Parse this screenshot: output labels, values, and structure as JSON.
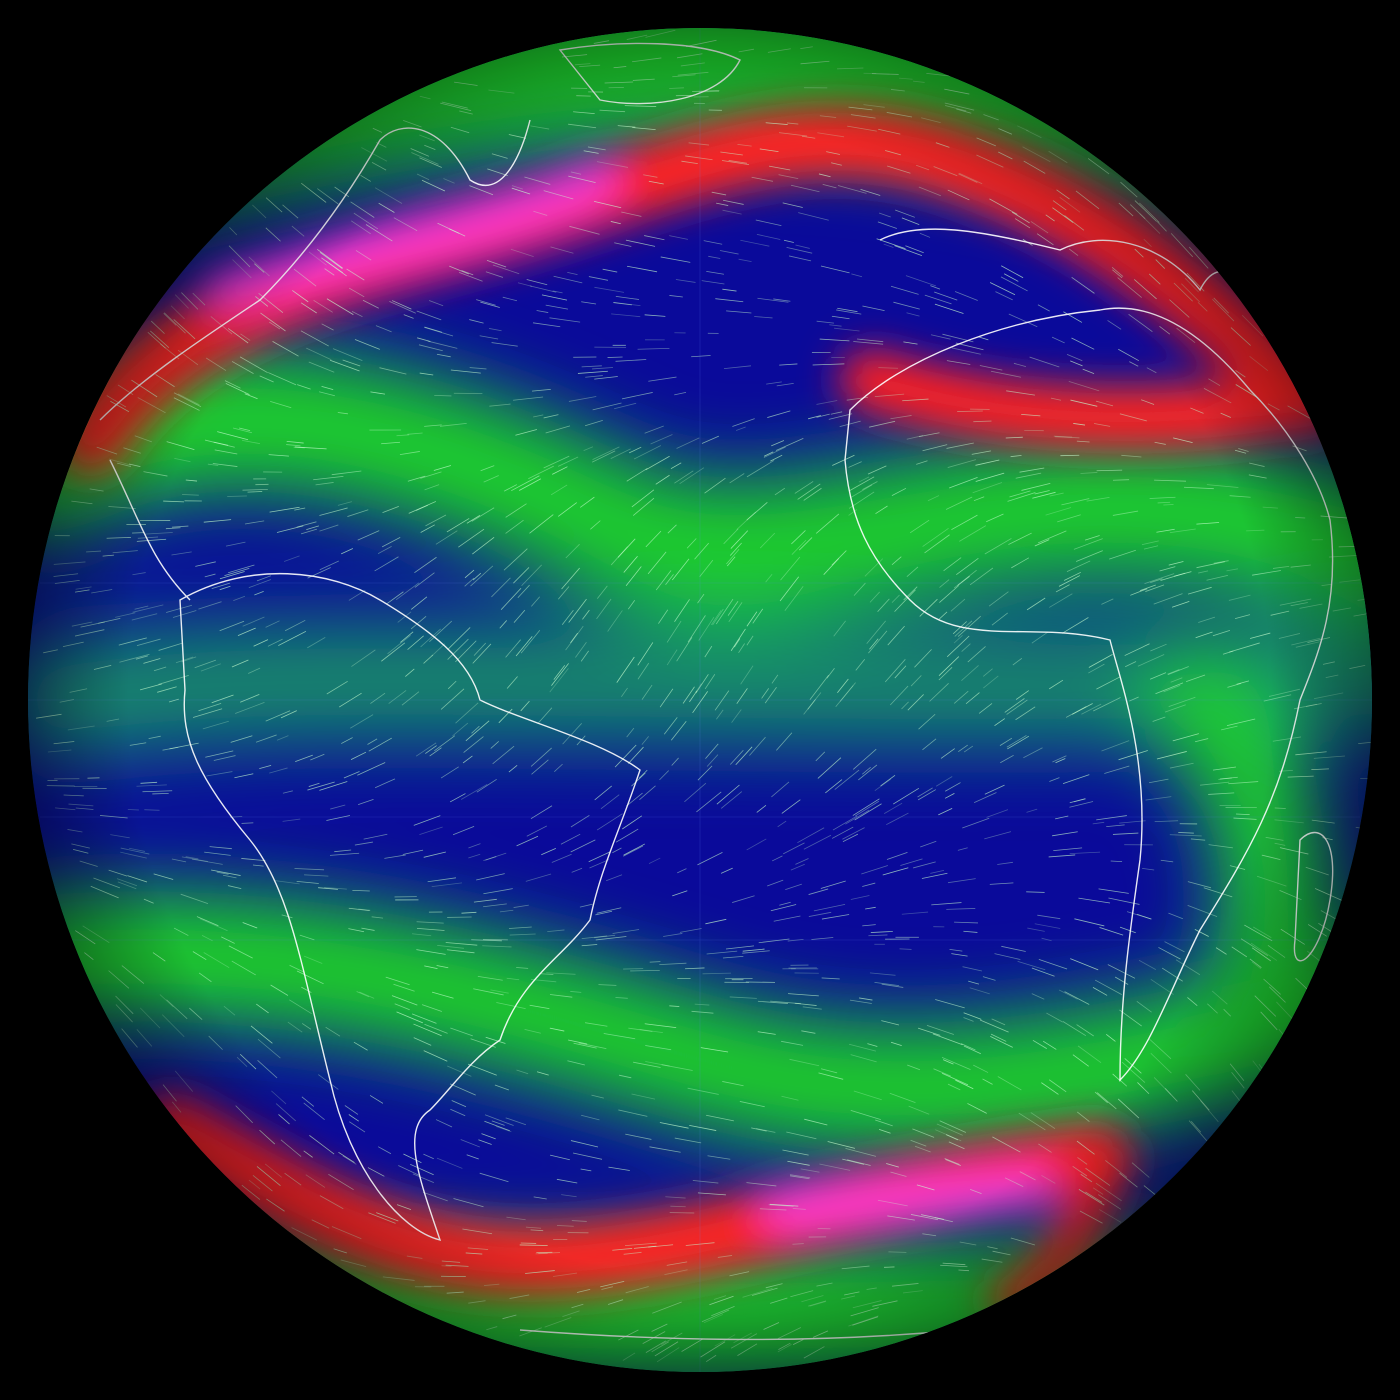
{
  "map": {
    "type": "orthographic-globe",
    "layer": "wind-streamlines",
    "colors": {
      "background": "#000000",
      "calm": "#0a0a9a",
      "low": "#1a7a8a",
      "moderate": "#1ed02a",
      "strong": "#ff2020",
      "very_strong": "#ff40e0",
      "coastline": "#ffffff",
      "streamline": "#c8ffd0"
    }
  }
}
